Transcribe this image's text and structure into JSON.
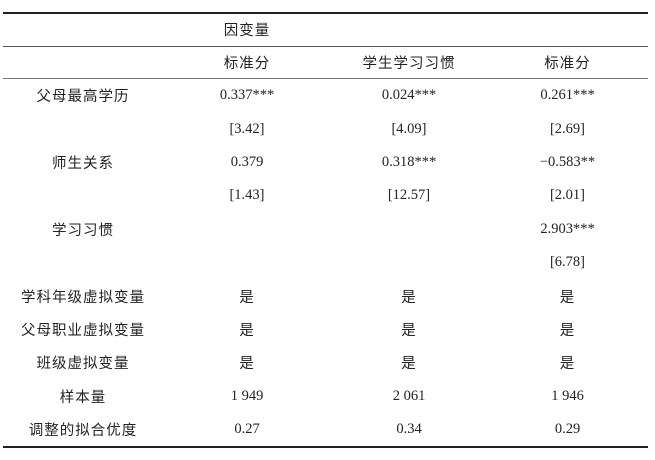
{
  "table": {
    "group_header": "因变量",
    "col_headers": [
      "标准分",
      "学生学习习惯",
      "标准分"
    ],
    "rows": [
      {
        "label": "父母最高学历",
        "c1": "0.337***",
        "c2": "0.024***",
        "c3": "0.261***"
      },
      {
        "label": "",
        "c1": "[3.42]",
        "c2": "[4.09]",
        "c3": "[2.69]"
      },
      {
        "label": "师生关系",
        "c1": "0.379",
        "c2": "0.318***",
        "c3": "−0.583**"
      },
      {
        "label": "",
        "c1": "[1.43]",
        "c2": "[12.57]",
        "c3": "[2.01]"
      },
      {
        "label": "学习习惯",
        "c1": "",
        "c2": "",
        "c3": "2.903***"
      },
      {
        "label": "",
        "c1": "",
        "c2": "",
        "c3": "[6.78]"
      },
      {
        "label": "学科年级虚拟变量",
        "c1": "是",
        "c2": "是",
        "c3": "是"
      },
      {
        "label": "父母职业虚拟变量",
        "c1": "是",
        "c2": "是",
        "c3": "是"
      },
      {
        "label": "班级虚拟变量",
        "c1": "是",
        "c2": "是",
        "c3": "是"
      },
      {
        "label": "样本量",
        "c1": "1 949",
        "c2": "2 061",
        "c3": "1 946"
      },
      {
        "label": "调整的拟合优度",
        "c1": "0.27",
        "c2": "0.34",
        "c3": "0.29"
      }
    ]
  },
  "colors": {
    "background": "#ffffff",
    "text": "#232323",
    "rule_heavy": "#222222",
    "rule_light": "#666666"
  }
}
